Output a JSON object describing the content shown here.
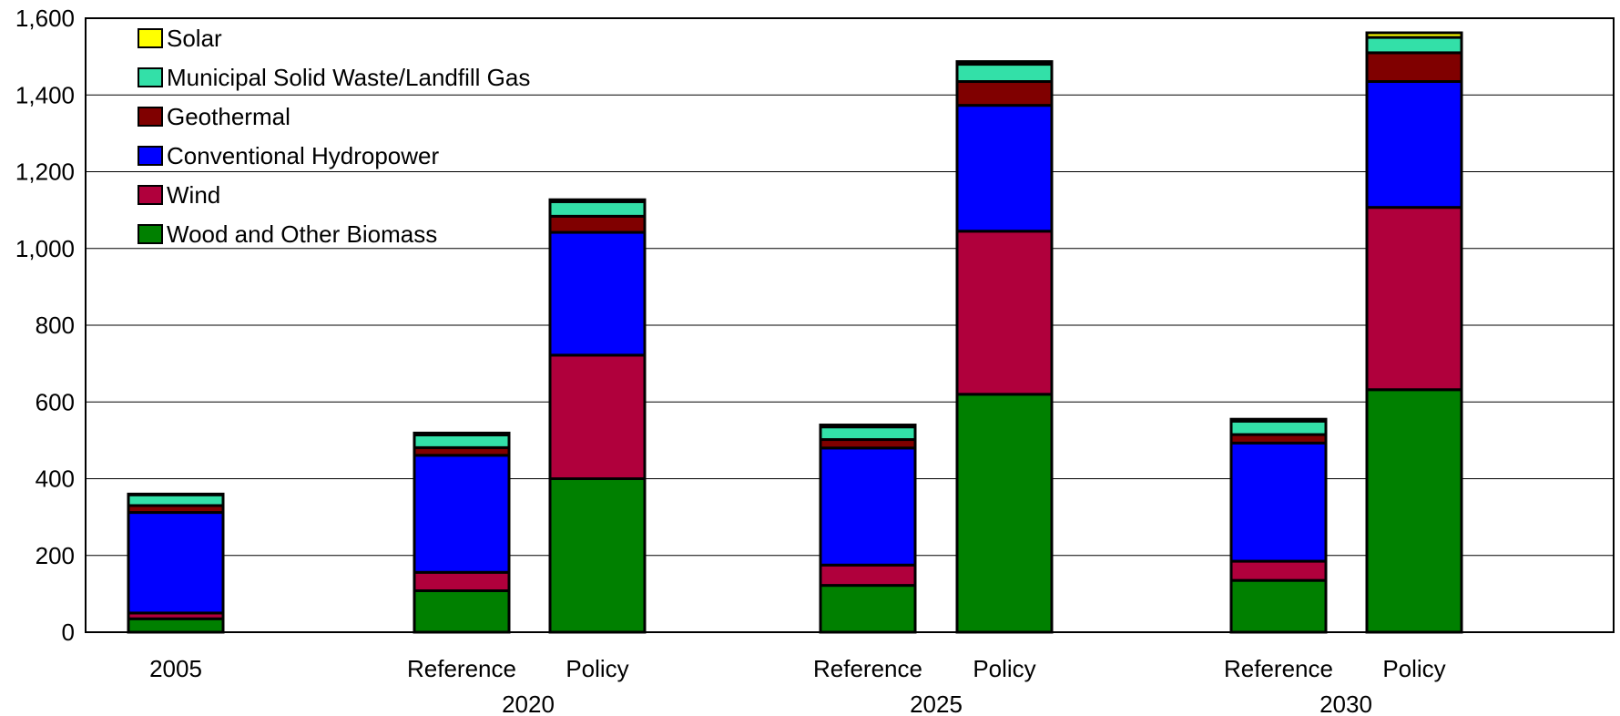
{
  "chart_data": {
    "type": "bar",
    "stacked": true,
    "categories": [
      "2005",
      "Reference",
      "Policy",
      "Reference",
      "Policy",
      "Reference",
      "Policy"
    ],
    "groups": [
      {
        "label": "",
        "members": [
          0
        ]
      },
      {
        "label": "2020",
        "members": [
          1,
          2
        ]
      },
      {
        "label": "2025",
        "members": [
          3,
          4
        ]
      },
      {
        "label": "2030",
        "members": [
          5,
          6
        ]
      }
    ],
    "series": [
      {
        "name": "Wood and Other Biomass",
        "color": "#008000",
        "values": [
          35,
          108,
          400,
          122,
          620,
          135,
          632
        ]
      },
      {
        "name": "Wind",
        "color": "#b0003c",
        "values": [
          15,
          48,
          322,
          53,
          425,
          50,
          475
        ]
      },
      {
        "name": "Conventional Hydropower",
        "color": "#0000ff",
        "values": [
          262,
          305,
          320,
          305,
          328,
          308,
          328
        ]
      },
      {
        "name": "Geothermal",
        "color": "#800000",
        "values": [
          18,
          20,
          42,
          22,
          62,
          22,
          75
        ]
      },
      {
        "name": "Municipal Solid Waste/Landfill Gas",
        "color": "#33e0a8",
        "values": [
          28,
          33,
          38,
          33,
          45,
          35,
          40
        ]
      },
      {
        "name": "Solar",
        "color": "#ffff00",
        "values": [
          2,
          5,
          5,
          5,
          7,
          5,
          12
        ]
      }
    ],
    "legend_order": [
      "Solar",
      "Municipal Solid Waste/Landfill Gas",
      "Geothermal",
      "Conventional Hydropower",
      "Wind",
      "Wood and Other Biomass"
    ],
    "legend_position": "top-left",
    "yticks": [
      "0",
      "200",
      "400",
      "600",
      "800",
      "1,000",
      "1,200",
      "1,400",
      "1,600"
    ],
    "ylim": [
      0,
      1600
    ],
    "grid": true,
    "title": "",
    "xlabel": "",
    "ylabel": ""
  }
}
